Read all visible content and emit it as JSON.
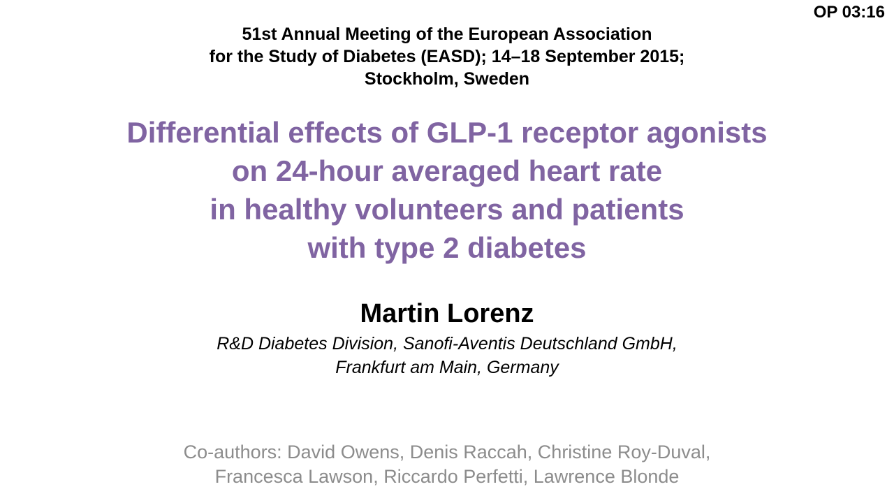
{
  "slide_code": "OP 03:16",
  "conference": {
    "lines": [
      "51st Annual Meeting of the European Association",
      "for the Study of Diabetes (EASD); 14–18 September 2015;",
      "Stockholm, Sweden"
    ]
  },
  "title": {
    "lines": [
      "Differential effects of GLP-1 receptor agonists",
      "on 24-hour averaged heart rate",
      "in healthy volunteers and patients",
      "with type 2 diabetes"
    ]
  },
  "presenter": {
    "name": "Martin Lorenz",
    "affiliation_lines": [
      "R&D Diabetes Division, Sanofi-Aventis Deutschland GmbH,",
      "Frankfurt am Main, Germany"
    ]
  },
  "coauthors": {
    "lines": [
      "Co-authors: David Owens, Denis Raccah, Christine Roy-Duval,",
      "Francesca Lawson, Riccardo Perfetti, Lawrence Blonde"
    ]
  },
  "colors": {
    "title": "#8064a2",
    "coauthors": "#8c8c8c",
    "text": "#000000"
  }
}
